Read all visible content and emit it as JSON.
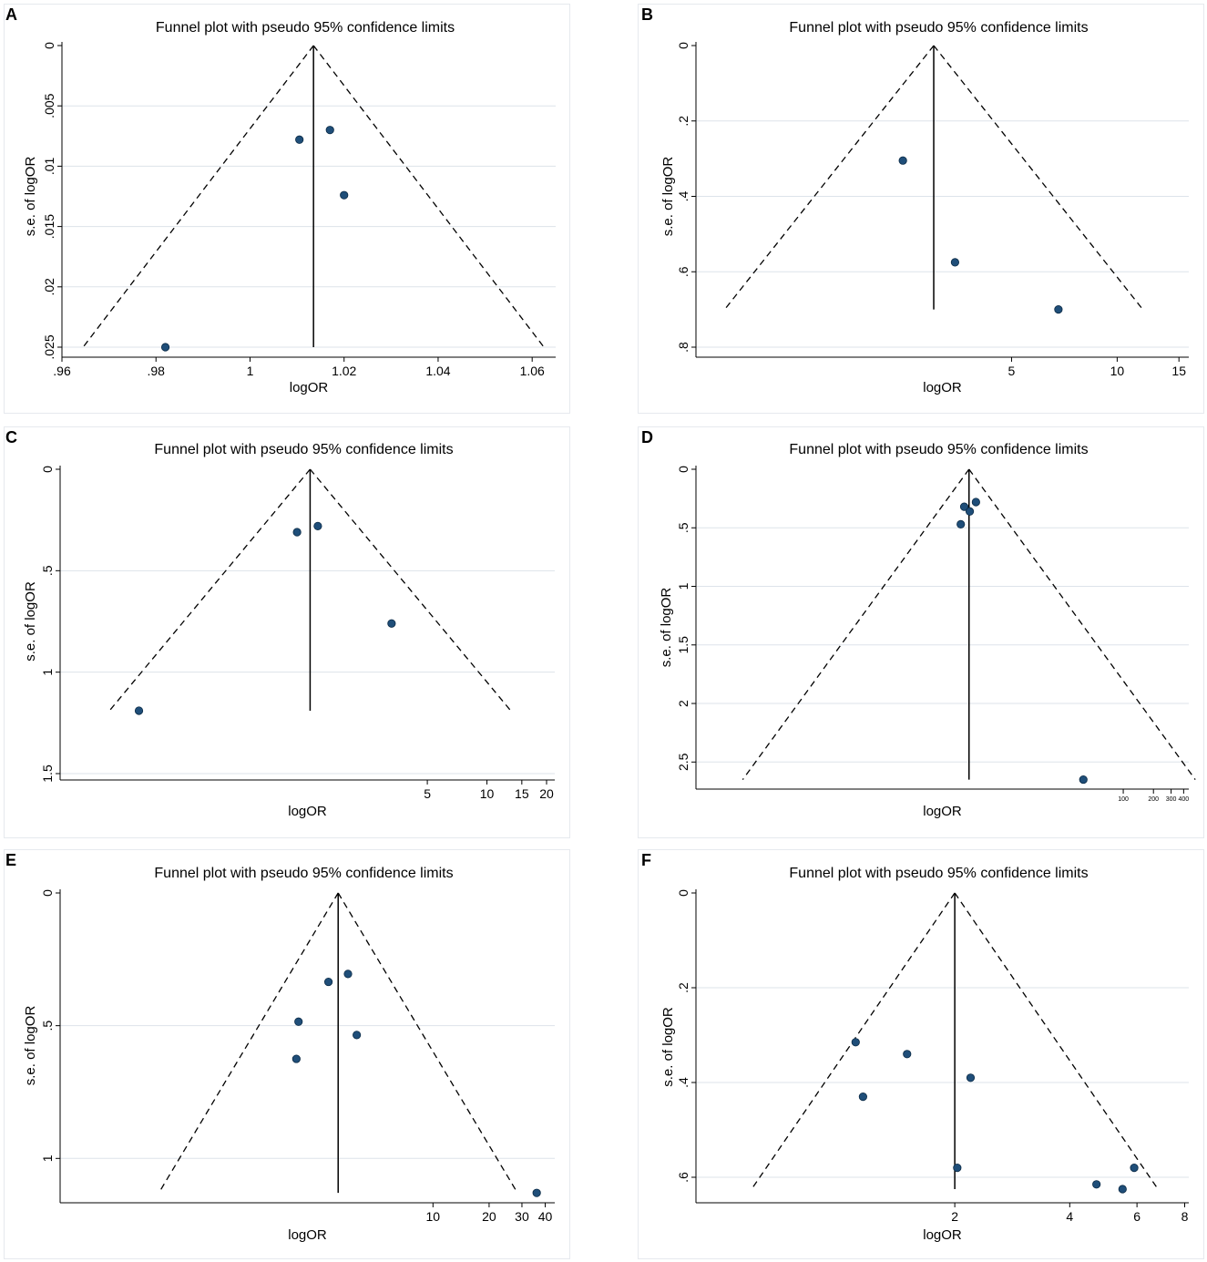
{
  "colors": {
    "point": "#1f4e79",
    "point_edge": "#0b2a45",
    "gridline": "#dde3ea",
    "axis": "#000000"
  },
  "chart_data": [
    {
      "panel": "A",
      "type": "scatter",
      "title": "Funnel plot with pseudo 95% confidence limits",
      "xlabel": "logOR",
      "ylabel": "s.e. of logOR",
      "x_scale": "linear",
      "xlim": [
        0.96,
        1.065
      ],
      "x_ticks": [
        0.96,
        0.98,
        1.0,
        1.02,
        1.04,
        1.06
      ],
      "x_tick_labels": [
        ".96",
        ".98",
        "1",
        "1.02",
        "1.04",
        "1.06"
      ],
      "ylim": [
        0,
        0.025
      ],
      "y_inverted": true,
      "y_ticks": [
        0,
        0.005,
        0.01,
        0.015,
        0.02,
        0.025
      ],
      "y_tick_labels": [
        "0",
        ".005",
        ".01",
        ".015",
        ".02",
        ".025"
      ],
      "grid": true,
      "pooled_logOR": 1.0135,
      "se_max": 0.025,
      "points": [
        {
          "x": 0.982,
          "y": 0.025
        },
        {
          "x": 1.0105,
          "y": 0.0078
        },
        {
          "x": 1.017,
          "y": 0.007
        },
        {
          "x": 1.02,
          "y": 0.0124
        }
      ]
    },
    {
      "panel": "B",
      "type": "scatter",
      "title": "Funnel plot with pseudo 95% confidence limits",
      "xlabel": "logOR",
      "ylabel": "s.e. of logOR",
      "x_scale": "log",
      "xlim": [
        0.63,
        16
      ],
      "x_ticks": [
        5,
        10,
        15
      ],
      "x_tick_labels": [
        "5",
        "10",
        "15"
      ],
      "ylim": [
        0,
        0.8
      ],
      "y_inverted": true,
      "y_ticks": [
        0,
        0.2,
        0.4,
        0.6,
        0.8
      ],
      "y_tick_labels": [
        "0",
        ".2",
        ".4",
        ".6",
        ".8"
      ],
      "grid": true,
      "pooled_logOR": 3.0,
      "se_max": 0.7,
      "points": [
        {
          "x": 2.45,
          "y": 0.305
        },
        {
          "x": 3.45,
          "y": 0.575
        },
        {
          "x": 6.8,
          "y": 0.7
        }
      ]
    },
    {
      "panel": "C",
      "type": "scatter",
      "title": "Funnel plot with pseudo 95% confidence limits",
      "xlabel": "logOR",
      "ylabel": "s.e. of logOR",
      "x_scale": "log",
      "xlim": [
        0.07,
        22
      ],
      "x_ticks": [
        5,
        10,
        15,
        20
      ],
      "x_tick_labels": [
        "5",
        "10",
        "15",
        "20"
      ],
      "ylim": [
        0,
        1.5
      ],
      "y_inverted": true,
      "y_ticks": [
        0,
        0.5,
        1,
        1.5
      ],
      "y_tick_labels": [
        "0",
        ".5",
        "1",
        "1.5"
      ],
      "grid": true,
      "pooled_logOR": 1.28,
      "se_max": 1.19,
      "points": [
        {
          "x": 0.175,
          "y": 1.19
        },
        {
          "x": 1.1,
          "y": 0.31
        },
        {
          "x": 1.4,
          "y": 0.28
        },
        {
          "x": 3.3,
          "y": 0.76
        }
      ]
    },
    {
      "panel": "D",
      "type": "scatter",
      "title": "Funnel plot with pseudo 95% confidence limits",
      "xlabel": "logOR",
      "ylabel": "s.e. of logOR",
      "x_scale": "log",
      "xlim": [
        0.0055,
        450
      ],
      "x_ticks": [
        100,
        200,
        300,
        400
      ],
      "x_tick_labels": [
        "100",
        "200",
        "300",
        "400"
      ],
      "ylim": [
        0,
        2.7
      ],
      "y_inverted": true,
      "y_ticks": [
        0,
        0.5,
        1,
        1.5,
        2,
        2.5
      ],
      "y_tick_labels": [
        "0",
        ".5",
        "1",
        "1.5",
        "2",
        "2.5"
      ],
      "grid": true,
      "pooled_logOR": 2.9,
      "se_max": 2.65,
      "points": [
        {
          "x": 2.4,
          "y": 0.47
        },
        {
          "x": 2.6,
          "y": 0.32
        },
        {
          "x": 2.95,
          "y": 0.36
        },
        {
          "x": 3.4,
          "y": 0.28
        },
        {
          "x": 40,
          "y": 2.65
        }
      ]
    },
    {
      "panel": "E",
      "type": "scatter",
      "title": "Funnel plot with pseudo 95% confidence limits",
      "xlabel": "logOR",
      "ylabel": "s.e. of logOR",
      "x_scale": "log",
      "xlim": [
        0.1,
        45
      ],
      "x_ticks": [
        10,
        20,
        30,
        40
      ],
      "x_tick_labels": [
        "10",
        "20",
        "30",
        "40"
      ],
      "ylim": [
        0,
        1.15
      ],
      "y_inverted": true,
      "y_ticks": [
        0,
        0.5,
        1
      ],
      "y_tick_labels": [
        "0",
        ".5",
        "1"
      ],
      "grid": true,
      "pooled_logOR": 3.1,
      "se_max": 1.13,
      "points": [
        {
          "x": 1.9,
          "y": 0.485
        },
        {
          "x": 1.85,
          "y": 0.625
        },
        {
          "x": 2.75,
          "y": 0.335
        },
        {
          "x": 3.5,
          "y": 0.305
        },
        {
          "x": 3.9,
          "y": 0.535
        },
        {
          "x": 36,
          "y": 1.13
        }
      ]
    },
    {
      "panel": "F",
      "type": "scatter",
      "title": "Funnel plot with pseudo 95% confidence limits",
      "xlabel": "logOR",
      "ylabel": "s.e. of logOR",
      "x_scale": "log",
      "xlim": [
        0.42,
        8.2
      ],
      "x_ticks": [
        2,
        4,
        6,
        8
      ],
      "x_tick_labels": [
        "2",
        "4",
        "6",
        "8"
      ],
      "ylim": [
        0,
        0.65
      ],
      "y_inverted": true,
      "y_ticks": [
        0,
        0.2,
        0.4,
        0.6
      ],
      "y_tick_labels": [
        "0",
        ".2",
        ".4",
        ".6"
      ],
      "grid": true,
      "pooled_logOR": 2.0,
      "se_max": 0.625,
      "points": [
        {
          "x": 1.1,
          "y": 0.315
        },
        {
          "x": 1.15,
          "y": 0.43
        },
        {
          "x": 1.5,
          "y": 0.34
        },
        {
          "x": 2.03,
          "y": 0.58
        },
        {
          "x": 2.2,
          "y": 0.39
        },
        {
          "x": 4.7,
          "y": 0.615
        },
        {
          "x": 5.5,
          "y": 0.625
        },
        {
          "x": 5.9,
          "y": 0.58
        }
      ]
    }
  ]
}
